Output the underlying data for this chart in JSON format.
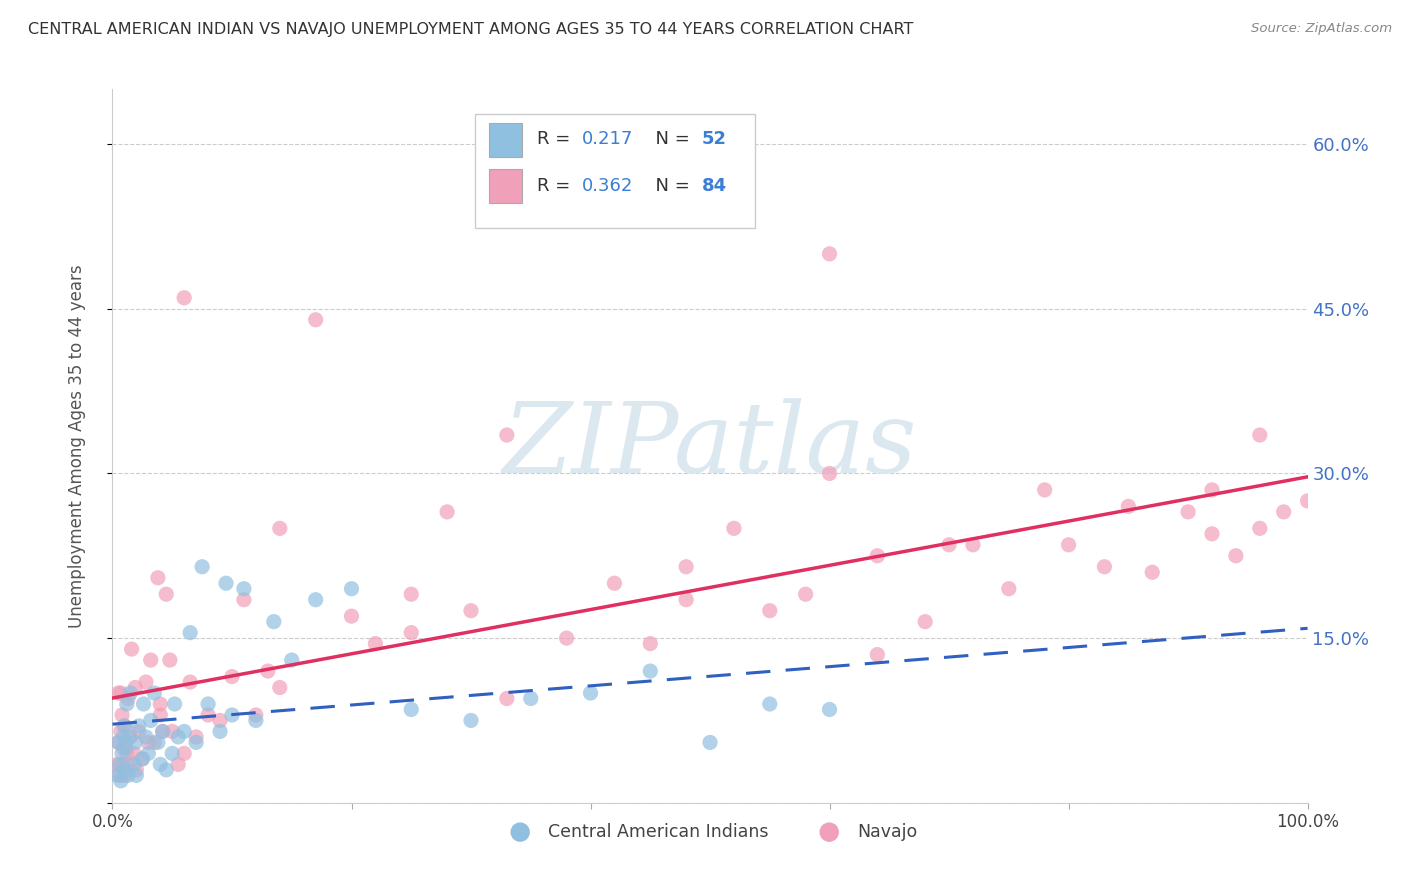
{
  "title": "CENTRAL AMERICAN INDIAN VS NAVAJO UNEMPLOYMENT AMONG AGES 35 TO 44 YEARS CORRELATION CHART",
  "source": "Source: ZipAtlas.com",
  "ylabel": "Unemployment Among Ages 35 to 44 years",
  "xlim": [
    0.0,
    1.0
  ],
  "ylim": [
    0.0,
    0.65
  ],
  "blue_color": "#90c0e0",
  "pink_color": "#f0a0b8",
  "trendline_blue_color": "#3060c0",
  "trendline_pink_color": "#e03060",
  "watermark_text": "ZIPatlas",
  "watermark_color": "#dce8f0",
  "background_color": "#ffffff",
  "grid_color": "#cccccc",
  "label_blue": "Central American Indians",
  "label_pink": "Navajo",
  "legend_R_blue": "0.217",
  "legend_N_blue": "52",
  "legend_R_pink": "0.362",
  "legend_N_pink": "84",
  "blue_x": [
    0.004,
    0.005,
    0.006,
    0.007,
    0.008,
    0.009,
    0.01,
    0.01,
    0.011,
    0.012,
    0.013,
    0.014,
    0.015,
    0.018,
    0.019,
    0.02,
    0.022,
    0.025,
    0.026,
    0.028,
    0.03,
    0.032,
    0.035,
    0.038,
    0.04,
    0.042,
    0.045,
    0.05,
    0.052,
    0.055,
    0.06,
    0.065,
    0.07,
    0.075,
    0.08,
    0.09,
    0.095,
    0.1,
    0.11,
    0.12,
    0.135,
    0.15,
    0.17,
    0.2,
    0.25,
    0.3,
    0.35,
    0.4,
    0.45,
    0.5,
    0.55,
    0.6
  ],
  "blue_y": [
    0.025,
    0.055,
    0.035,
    0.02,
    0.045,
    0.06,
    0.03,
    0.07,
    0.05,
    0.09,
    0.025,
    0.06,
    0.1,
    0.035,
    0.055,
    0.025,
    0.07,
    0.04,
    0.09,
    0.06,
    0.045,
    0.075,
    0.1,
    0.055,
    0.035,
    0.065,
    0.03,
    0.045,
    0.09,
    0.06,
    0.065,
    0.155,
    0.055,
    0.215,
    0.09,
    0.065,
    0.2,
    0.08,
    0.195,
    0.075,
    0.165,
    0.13,
    0.185,
    0.195,
    0.085,
    0.075,
    0.095,
    0.1,
    0.12,
    0.055,
    0.09,
    0.085
  ],
  "pink_x": [
    0.004,
    0.005,
    0.005,
    0.006,
    0.007,
    0.007,
    0.008,
    0.008,
    0.009,
    0.01,
    0.01,
    0.011,
    0.012,
    0.013,
    0.013,
    0.015,
    0.016,
    0.018,
    0.019,
    0.02,
    0.022,
    0.025,
    0.028,
    0.03,
    0.032,
    0.035,
    0.038,
    0.04,
    0.042,
    0.045,
    0.048,
    0.05,
    0.055,
    0.06,
    0.065,
    0.07,
    0.08,
    0.09,
    0.1,
    0.11,
    0.12,
    0.13,
    0.14,
    0.17,
    0.2,
    0.22,
    0.25,
    0.28,
    0.3,
    0.33,
    0.38,
    0.42,
    0.45,
    0.48,
    0.52,
    0.55,
    0.58,
    0.6,
    0.64,
    0.68,
    0.7,
    0.72,
    0.75,
    0.78,
    0.8,
    0.83,
    0.85,
    0.87,
    0.9,
    0.92,
    0.94,
    0.96,
    0.98,
    1.0,
    0.25,
    0.6,
    0.14,
    0.06,
    0.33,
    0.48,
    0.92,
    0.96,
    0.04,
    0.64
  ],
  "pink_y": [
    0.035,
    0.055,
    0.1,
    0.025,
    0.065,
    0.1,
    0.035,
    0.08,
    0.05,
    0.025,
    0.07,
    0.055,
    0.045,
    0.035,
    0.095,
    0.06,
    0.14,
    0.045,
    0.105,
    0.03,
    0.065,
    0.04,
    0.11,
    0.055,
    0.13,
    0.055,
    0.205,
    0.08,
    0.065,
    0.19,
    0.13,
    0.065,
    0.035,
    0.045,
    0.11,
    0.06,
    0.08,
    0.075,
    0.115,
    0.185,
    0.08,
    0.12,
    0.25,
    0.44,
    0.17,
    0.145,
    0.19,
    0.265,
    0.175,
    0.335,
    0.15,
    0.2,
    0.145,
    0.215,
    0.25,
    0.175,
    0.19,
    0.3,
    0.225,
    0.165,
    0.235,
    0.235,
    0.195,
    0.285,
    0.235,
    0.215,
    0.27,
    0.21,
    0.265,
    0.245,
    0.225,
    0.25,
    0.265,
    0.275,
    0.155,
    0.5,
    0.105,
    0.46,
    0.095,
    0.185,
    0.285,
    0.335,
    0.09,
    0.135
  ]
}
